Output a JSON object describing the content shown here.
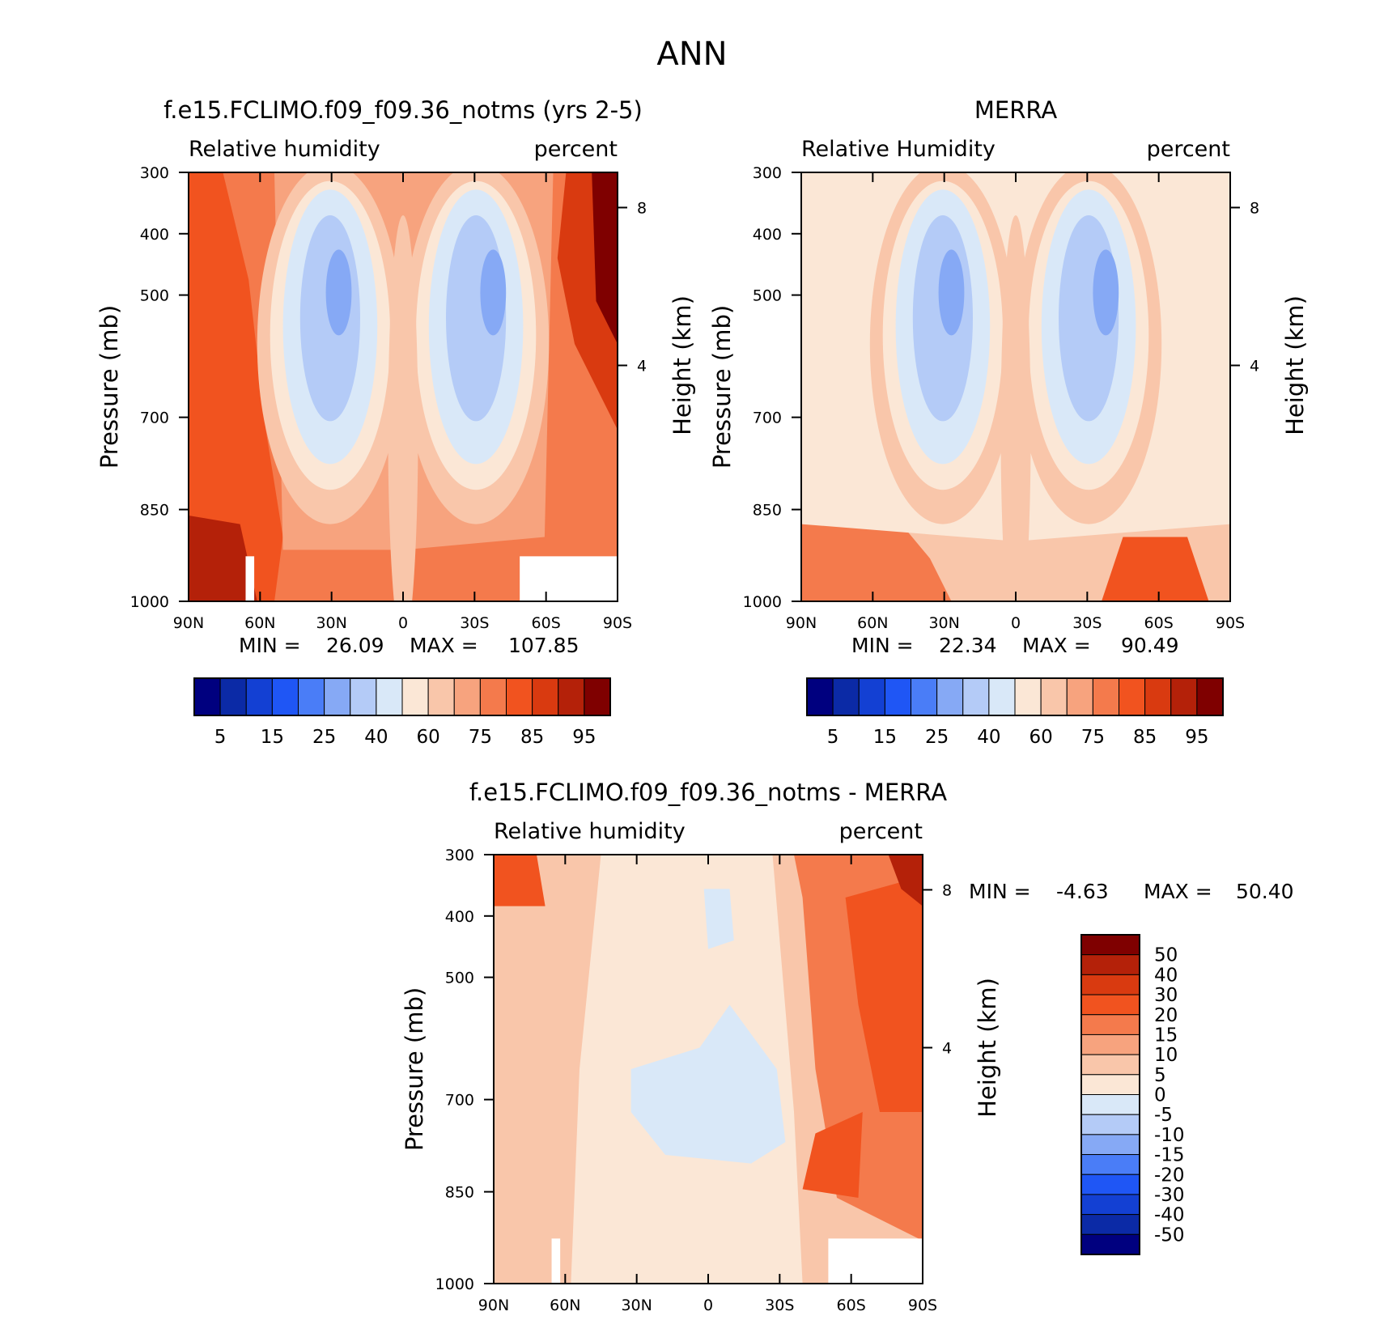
{
  "figure_title": "ANN",
  "chart_data": [
    {
      "type": "contour",
      "title": "f.e15.FCLIMO.f09_f09.36_notms (yrs 2-5)",
      "left_label": "Relative humidity",
      "right_label": "percent",
      "ylabel": "Pressure (mb)",
      "ylabel_right": "Height (km)",
      "x_ticks": [
        "90N",
        "60N",
        "30N",
        "0",
        "30S",
        "60S",
        "90S"
      ],
      "y_ticks": [
        "300",
        "400",
        "500",
        "700",
        "850",
        "1000"
      ],
      "y2_ticks": [
        "8",
        "4"
      ],
      "min_label": "MIN =",
      "min_value": "26.09",
      "max_label": "MAX =",
      "max_value": "107.85",
      "colorbar_levels": [
        "5",
        "15",
        "25",
        "40",
        "60",
        "75",
        "85",
        "95"
      ],
      "colors": [
        "#00007f",
        "#0b2aa6",
        "#1340d3",
        "#1f56f5",
        "#4a7df7",
        "#86a9f5",
        "#b4cbf7",
        "#d9e8f8",
        "#fbe7d6",
        "#f9c6aa",
        "#f7a37e",
        "#f47a4c",
        "#f1531f",
        "#d93a10",
        "#b42109",
        "#7f0000"
      ]
    },
    {
      "type": "contour",
      "title": "MERRA",
      "left_label": "Relative Humidity",
      "right_label": "percent",
      "ylabel": "Pressure (mb)",
      "ylabel_right": "Height (km)",
      "x_ticks": [
        "90N",
        "60N",
        "30N",
        "0",
        "30S",
        "60S",
        "90S"
      ],
      "y_ticks": [
        "300",
        "400",
        "500",
        "700",
        "850",
        "1000"
      ],
      "y2_ticks": [
        "8",
        "4"
      ],
      "min_label": "MIN =",
      "min_value": "22.34",
      "max_label": "MAX =",
      "max_value": "90.49",
      "colorbar_levels": [
        "5",
        "15",
        "25",
        "40",
        "60",
        "75",
        "85",
        "95"
      ],
      "colors": [
        "#00007f",
        "#0b2aa6",
        "#1340d3",
        "#1f56f5",
        "#4a7df7",
        "#86a9f5",
        "#b4cbf7",
        "#d9e8f8",
        "#fbe7d6",
        "#f9c6aa",
        "#f7a37e",
        "#f47a4c",
        "#f1531f",
        "#d93a10",
        "#b42109",
        "#7f0000"
      ]
    },
    {
      "type": "contour",
      "title": "f.e15.FCLIMO.f09_f09.36_notms - MERRA",
      "left_label": "Relative humidity",
      "right_label": "percent",
      "ylabel": "Pressure (mb)",
      "ylabel_right": "Height (km)",
      "x_ticks": [
        "90N",
        "60N",
        "30N",
        "0",
        "30S",
        "60S",
        "90S"
      ],
      "y_ticks": [
        "300",
        "400",
        "500",
        "700",
        "850",
        "1000"
      ],
      "y2_ticks": [
        "8",
        "4"
      ],
      "min_label": "MIN =",
      "min_value": "-4.63",
      "max_label": "MAX =",
      "max_value": "50.40",
      "colorbar_levels": [
        "50",
        "40",
        "30",
        "20",
        "15",
        "10",
        "5",
        "0",
        "-5",
        "-10",
        "-15",
        "-20",
        "-30",
        "-40",
        "-50"
      ],
      "colors": [
        "#7f0000",
        "#b42109",
        "#d93a10",
        "#f1531f",
        "#f47a4c",
        "#f7a37e",
        "#f9c6aa",
        "#fbe7d6",
        "#d9e8f8",
        "#b4cbf7",
        "#86a9f5",
        "#4a7df7",
        "#1f56f5",
        "#1340d3",
        "#0b2aa6",
        "#00007f"
      ]
    }
  ]
}
